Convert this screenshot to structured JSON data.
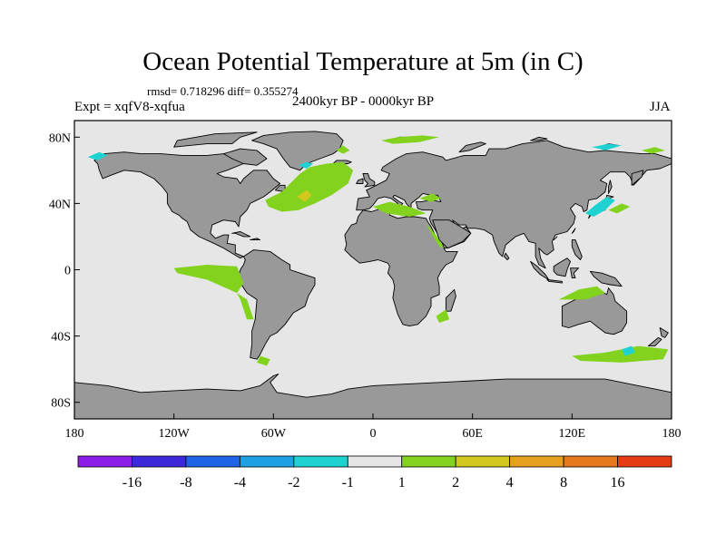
{
  "title": "Ocean Potential Temperature at 5m (in C)",
  "stats_line": "rmsd= 0.718296 diff= 0.355274",
  "experiment": "Expt = xqfV8-xqfua",
  "period": "2400kyr BP - 0000kyr BP",
  "season": "JJA",
  "colors": {
    "land": "#999999",
    "ocean_background": "#e6e6e6",
    "coastline": "#000000"
  },
  "lat_axis": {
    "min": -90,
    "max": 90,
    "ticks": [
      {
        "value": 80,
        "label": "80N"
      },
      {
        "value": 40,
        "label": "40N"
      },
      {
        "value": 0,
        "label": "0"
      },
      {
        "value": -40,
        "label": "40S"
      },
      {
        "value": -80,
        "label": "80S"
      }
    ]
  },
  "lon_axis": {
    "min": -180,
    "max": 180,
    "ticks": [
      {
        "value": -180,
        "label": "180"
      },
      {
        "value": -120,
        "label": "120W"
      },
      {
        "value": -60,
        "label": "60W"
      },
      {
        "value": 0,
        "label": "0"
      },
      {
        "value": 60,
        "label": "60E"
      },
      {
        "value": 120,
        "label": "120E"
      },
      {
        "value": 180,
        "label": "180"
      }
    ]
  },
  "colorbar": {
    "colors": [
      "#8a1ee6",
      "#3c28d8",
      "#1e64e6",
      "#1ea0e6",
      "#1ed2d2",
      "#e6e6e6",
      "#82d21e",
      "#d2c81e",
      "#e6a01e",
      "#e6781e",
      "#e63c14"
    ],
    "labels": [
      "-16",
      "-8",
      "-4",
      "-2",
      "-1",
      "1",
      "2",
      "4",
      "8",
      "16"
    ]
  },
  "anomaly_regions": [
    {
      "name": "north-atlantic-warming",
      "color": "#82d21e",
      "points": [
        [
          -65,
          42
        ],
        [
          -55,
          47
        ],
        [
          -50,
          52
        ],
        [
          -44,
          58
        ],
        [
          -38,
          62
        ],
        [
          -28,
          64
        ],
        [
          -18,
          65
        ],
        [
          -12,
          60
        ],
        [
          -15,
          52
        ],
        [
          -25,
          45
        ],
        [
          -35,
          40
        ],
        [
          -45,
          36
        ],
        [
          -55,
          35
        ],
        [
          -63,
          38
        ]
      ]
    },
    {
      "name": "north-atlantic-core",
      "color": "#d2c81e",
      "points": [
        [
          -46,
          44
        ],
        [
          -40,
          48
        ],
        [
          -37,
          45
        ],
        [
          -41,
          41
        ]
      ]
    },
    {
      "name": "barents-sea-warming",
      "color": "#82d21e",
      "points": [
        [
          5,
          78
        ],
        [
          15,
          80
        ],
        [
          30,
          81
        ],
        [
          40,
          80
        ],
        [
          28,
          77
        ],
        [
          12,
          76
        ]
      ]
    },
    {
      "name": "greenland-east-warming",
      "color": "#82d21e",
      "points": [
        [
          -22,
          72
        ],
        [
          -18,
          75
        ],
        [
          -14,
          72
        ],
        [
          -18,
          70
        ]
      ]
    },
    {
      "name": "labrador-cooling",
      "color": "#1ed2d2",
      "points": [
        [
          -45,
          63
        ],
        [
          -40,
          65
        ],
        [
          -36,
          64
        ],
        [
          -40,
          61
        ]
      ]
    },
    {
      "name": "alaska-cooling",
      "color": "#1ed2d2",
      "points": [
        [
          -172,
          68
        ],
        [
          -165,
          71
        ],
        [
          -160,
          69
        ],
        [
          -166,
          66
        ]
      ]
    },
    {
      "name": "arctic-east-cooling",
      "color": "#1ed2d2",
      "points": [
        [
          132,
          74
        ],
        [
          142,
          76
        ],
        [
          150,
          75
        ],
        [
          140,
          72
        ]
      ]
    },
    {
      "name": "arctic-east-warming",
      "color": "#82d21e",
      "points": [
        [
          162,
          72
        ],
        [
          170,
          74
        ],
        [
          176,
          72
        ],
        [
          168,
          70
        ]
      ]
    },
    {
      "name": "japan-sea-cooling",
      "color": "#1ed2d2",
      "points": [
        [
          128,
          34
        ],
        [
          134,
          39
        ],
        [
          141,
          44
        ],
        [
          146,
          42
        ],
        [
          140,
          36
        ],
        [
          133,
          32
        ]
      ]
    },
    {
      "name": "kuroshio-warming",
      "color": "#82d21e",
      "points": [
        [
          142,
          36
        ],
        [
          150,
          40
        ],
        [
          155,
          38
        ],
        [
          147,
          34
        ]
      ]
    },
    {
      "name": "mediterranean-warming",
      "color": "#82d21e",
      "points": [
        [
          0,
          38
        ],
        [
          10,
          41
        ],
        [
          22,
          38
        ],
        [
          32,
          34
        ],
        [
          22,
          32
        ],
        [
          8,
          34
        ]
      ]
    },
    {
      "name": "black-sea-warming",
      "color": "#82d21e",
      "points": [
        [
          28,
          43
        ],
        [
          36,
          46
        ],
        [
          41,
          43
        ],
        [
          35,
          41
        ]
      ]
    },
    {
      "name": "red-sea-warming",
      "color": "#82d21e",
      "points": [
        [
          32,
          28
        ],
        [
          38,
          21
        ],
        [
          43,
          13
        ],
        [
          40,
          14
        ],
        [
          35,
          22
        ]
      ]
    },
    {
      "name": "east-pacific-equatorial",
      "color": "#82d21e",
      "points": [
        [
          -120,
          1
        ],
        [
          -100,
          3
        ],
        [
          -82,
          2
        ],
        [
          -78,
          -8
        ],
        [
          -82,
          -14
        ],
        [
          -100,
          -6
        ],
        [
          -118,
          -2
        ]
      ]
    },
    {
      "name": "peru-coast",
      "color": "#82d21e",
      "points": [
        [
          -82,
          -14
        ],
        [
          -76,
          -18
        ],
        [
          -72,
          -30
        ],
        [
          -76,
          -30
        ],
        [
          -80,
          -18
        ]
      ]
    },
    {
      "name": "australia-north-warming",
      "color": "#82d21e",
      "points": [
        [
          112,
          -18
        ],
        [
          124,
          -12
        ],
        [
          135,
          -10
        ],
        [
          140,
          -14
        ],
        [
          128,
          -18
        ]
      ]
    },
    {
      "name": "southern-ocean-warming",
      "color": "#82d21e",
      "points": [
        [
          120,
          -52
        ],
        [
          140,
          -50
        ],
        [
          160,
          -46
        ],
        [
          178,
          -48
        ],
        [
          175,
          -54
        ],
        [
          150,
          -56
        ],
        [
          125,
          -55
        ]
      ]
    },
    {
      "name": "tasman-cooling",
      "color": "#1ed2d2",
      "points": [
        [
          150,
          -48
        ],
        [
          156,
          -46
        ],
        [
          158,
          -50
        ],
        [
          152,
          -52
        ]
      ]
    },
    {
      "name": "mozambique-warming",
      "color": "#82d21e",
      "points": [
        [
          38,
          -28
        ],
        [
          44,
          -24
        ],
        [
          46,
          -30
        ],
        [
          40,
          -32
        ]
      ]
    },
    {
      "name": "patagonia-warming",
      "color": "#82d21e",
      "points": [
        [
          -68,
          -52
        ],
        [
          -62,
          -54
        ],
        [
          -64,
          -58
        ],
        [
          -70,
          -56
        ]
      ]
    }
  ]
}
